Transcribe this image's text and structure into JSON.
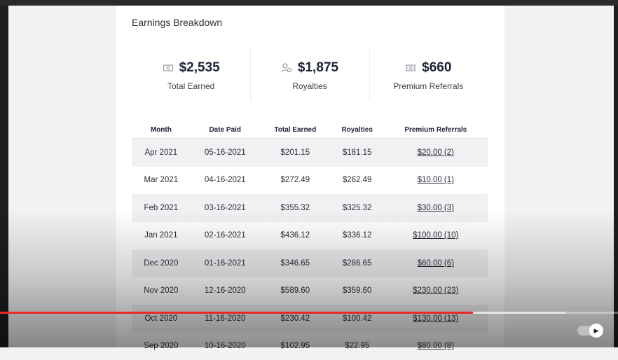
{
  "title": "Earnings Breakdown",
  "stats": [
    {
      "icon": "money-icon",
      "value": "$2,535",
      "label": "Total Earned"
    },
    {
      "icon": "person-coin-icon",
      "value": "$1,875",
      "label": "Royalties"
    },
    {
      "icon": "ticket-icon",
      "value": "$660",
      "label": "Premium Referrals"
    }
  ],
  "table": {
    "headers": [
      "Month",
      "Date Paid",
      "Total Earned",
      "Royalties",
      "Premium Referrals"
    ],
    "rows": [
      [
        "Apr 2021",
        "05-16-2021",
        "$201.15",
        "$181.15",
        "$20.00 (2)"
      ],
      [
        "Mar 2021",
        "04-16-2021",
        "$272.49",
        "$262.49",
        "$10.00 (1)"
      ],
      [
        "Feb 2021",
        "03-16-2021",
        "$355.32",
        "$325.32",
        "$30.00 (3)"
      ],
      [
        "Jan 2021",
        "02-16-2021",
        "$436.12",
        "$336.12",
        "$100.00 (10)"
      ],
      [
        "Dec 2020",
        "01-16-2021",
        "$346.65",
        "$286.65",
        "$60.00 (6)"
      ],
      [
        "Nov 2020",
        "12-16-2020",
        "$589.60",
        "$359.60",
        "$230.00 (23)"
      ],
      [
        "Oct 2020",
        "11-16-2020",
        "$230.42",
        "$100.42",
        "$130.00 (13)"
      ],
      [
        "Sep 2020",
        "10-16-2020",
        "$102.95",
        "$22.95",
        "$80.00 (8)"
      ]
    ]
  },
  "video": {
    "progress_played": 0.765,
    "progress_buffered": 0.915,
    "autoplay_icon": "play-icon",
    "progress_color": "#e52d27"
  }
}
